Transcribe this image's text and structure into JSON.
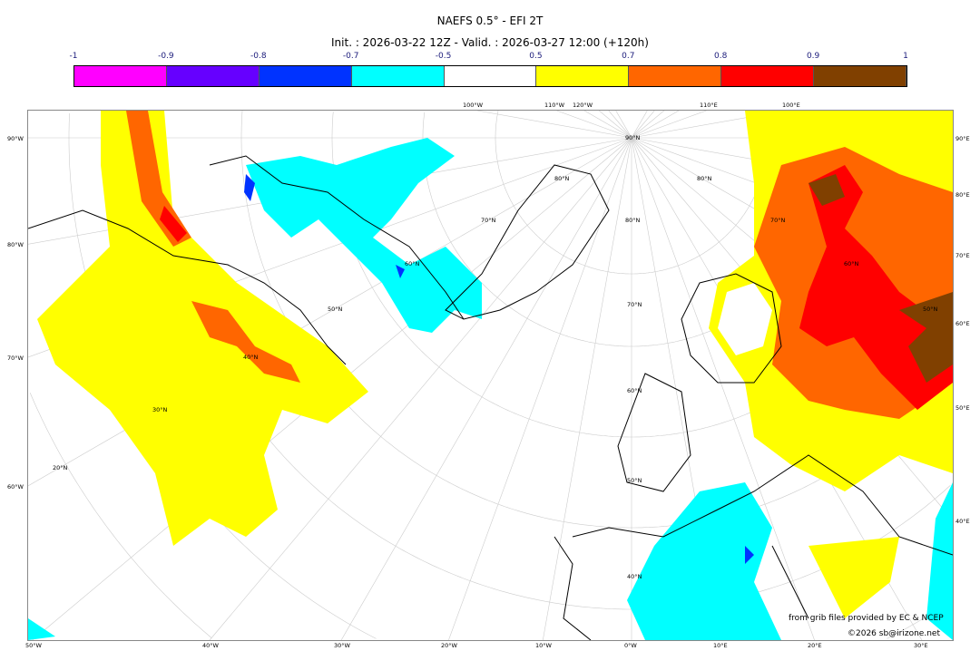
{
  "header": {
    "title": "NAEFS 0.5° - EFI 2T",
    "subtitle": "Init. : 2026-03-22 12Z - Valid. : 2026-03-27 12:00 (+120h)"
  },
  "colorbar": {
    "ticks": [
      "-1",
      "-0.9",
      "-0.8",
      "-0.7",
      "-0.5",
      "0.5",
      "0.7",
      "0.8",
      "0.9",
      "1"
    ],
    "colors": [
      "#ff00ff",
      "#6600ff",
      "#0033ff",
      "#00ffff",
      "#ffffff",
      "#ffff00",
      "#ff6600",
      "#ff0000",
      "#804000"
    ]
  },
  "map": {
    "left_labels": [
      "90°W",
      "80°W",
      "70°W",
      "60°W"
    ],
    "right_labels": [
      "90°E",
      "80°E",
      "70°E",
      "60°E",
      "50°E",
      "40°E"
    ],
    "bottom_labels": [
      "50°W",
      "40°W",
      "30°W",
      "20°W",
      "10°W",
      "0°W",
      "10°E",
      "20°E",
      "30°E"
    ],
    "top_labels": [
      "100°W",
      "110°W",
      "120°W",
      "110°E",
      "100°E"
    ],
    "lat_labels": [
      "90°N",
      "80°N",
      "70°N",
      "60°N",
      "50°N",
      "40°N",
      "50°N",
      "40°N",
      "30°N",
      "20°N",
      "60°N",
      "70°N",
      "80°N",
      "80°N",
      "70°N",
      "60°N",
      "50°N"
    ]
  },
  "credits": {
    "source": "from grib files provided by EC & NCEP",
    "copyright": "©2026 sb@irizone.net"
  }
}
